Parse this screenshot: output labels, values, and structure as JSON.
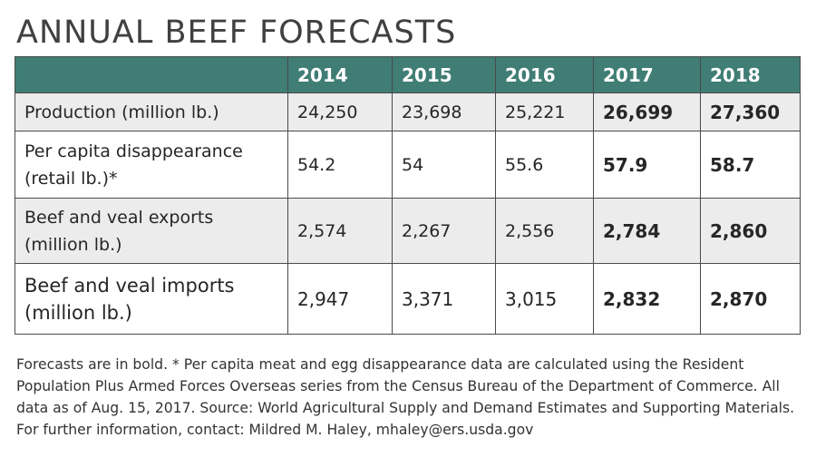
{
  "title": "ANNUAL BEEF FORECASTS",
  "table": {
    "header": [
      "",
      "2014",
      "2015",
      "2016",
      "2017",
      "2018"
    ],
    "rows": [
      {
        "label_line1": "Production (million lb.)",
        "label_line2": "",
        "values": [
          "24,250",
          "23,698",
          "25,221",
          "26,699",
          "27,360"
        ]
      },
      {
        "label_line1": "Per capita disappearance",
        "label_line2": "(retail lb.)*",
        "values": [
          "54.2",
          "54",
          "55.6",
          "57.9",
          "58.7"
        ]
      },
      {
        "label_line1": "Beef and veal exports",
        "label_line2": "(million lb.)",
        "values": [
          "2,574",
          "2,267",
          "2,556",
          "2,784",
          "2,860"
        ]
      },
      {
        "label_line1": "Beef and veal imports",
        "label_line2": "(million lb.)",
        "values": [
          "2,947",
          "3,371",
          "3,015",
          "2,832",
          "2,870"
        ]
      }
    ],
    "forecast_columns": [
      "2017",
      "2018"
    ]
  },
  "footnote": "Forecasts are in bold. * Per capita meat and egg disappearance data are calculated using the Resident Population Plus Armed Forces Overseas series from the Census Bureau of the Department of Commerce. All data as of Aug. 15, 2017. Source: World Agricultural Supply and Demand Estimates and Supporting Materials. For further information, contact: Mildred M. Haley, mhaley@ers.usda.gov",
  "colors": {
    "header_bg": "#3f7d75",
    "row_shade": "#ececec",
    "border": "#4a4a4a"
  }
}
